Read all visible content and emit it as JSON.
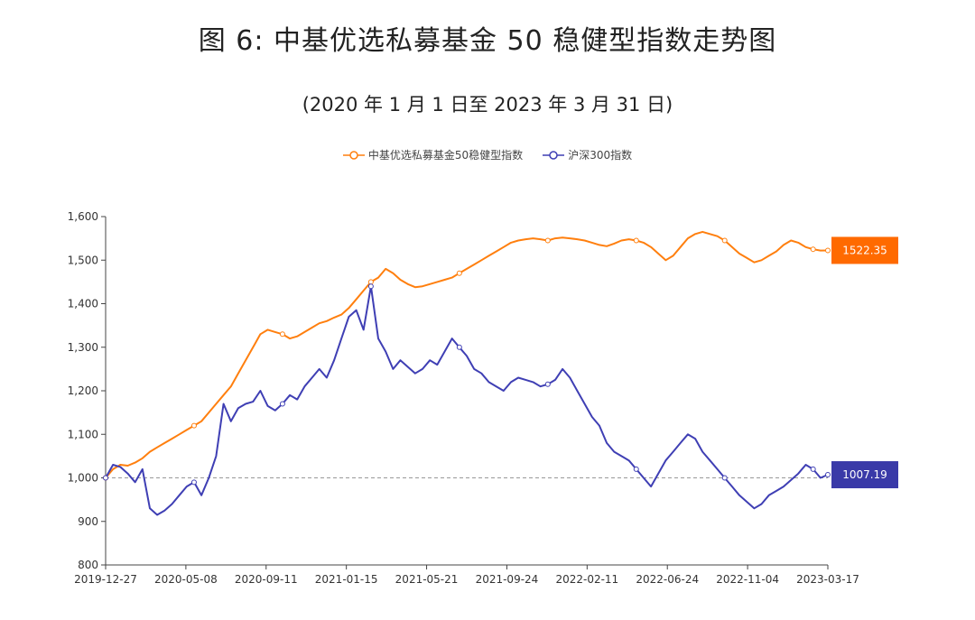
{
  "title": "图 6:  中基优选私募基金 50 稳健型指数走势图",
  "subtitle": "(2020 年 1 月 1 日至 2023 年 3 月 31 日)",
  "colors": {
    "series1": "#ff7f0e",
    "series2": "#3f3fb4",
    "end1_bg": "#ff6a00",
    "end2_bg": "#3a3aa8",
    "baseline": "#999999"
  },
  "chart_data": {
    "type": "line",
    "ylim": [
      800,
      1600
    ],
    "yticks": [
      800,
      900,
      1000,
      1100,
      1200,
      1300,
      1400,
      1500,
      1600
    ],
    "ytick_labels": [
      "800",
      "900",
      "1,000",
      "1,100",
      "1,200",
      "1,300",
      "1,400",
      "1,500",
      "1,600"
    ],
    "xtick_labels": [
      "2019-12-27",
      "2020-05-08",
      "2020-09-11",
      "2021-01-15",
      "2021-05-21",
      "2021-09-24",
      "2022-02-11",
      "2022-06-24",
      "2022-11-04",
      "2023-03-17"
    ],
    "baseline": 1000,
    "series": [
      {
        "name": "中基优选私募基金50稳健型指数",
        "end_label": "1522.35",
        "values": [
          1000,
          1020,
          1030,
          1028,
          1035,
          1045,
          1060,
          1070,
          1080,
          1090,
          1100,
          1110,
          1120,
          1130,
          1150,
          1170,
          1190,
          1210,
          1240,
          1270,
          1300,
          1330,
          1340,
          1335,
          1330,
          1320,
          1325,
          1335,
          1345,
          1355,
          1360,
          1368,
          1375,
          1390,
          1410,
          1430,
          1450,
          1460,
          1480,
          1470,
          1455,
          1445,
          1438,
          1440,
          1445,
          1450,
          1455,
          1460,
          1470,
          1480,
          1490,
          1500,
          1510,
          1520,
          1530,
          1540,
          1545,
          1548,
          1550,
          1548,
          1545,
          1550,
          1552,
          1550,
          1548,
          1545,
          1540,
          1535,
          1532,
          1538,
          1545,
          1548,
          1545,
          1540,
          1530,
          1515,
          1500,
          1510,
          1530,
          1550,
          1560,
          1565,
          1560,
          1555,
          1545,
          1530,
          1515,
          1505,
          1495,
          1500,
          1510,
          1520,
          1535,
          1545,
          1540,
          1530,
          1525,
          1522,
          1522.35
        ]
      },
      {
        "name": "沪深300指数",
        "end_label": "1007.19",
        "values": [
          1000,
          1030,
          1025,
          1010,
          990,
          1020,
          930,
          915,
          925,
          940,
          960,
          980,
          990,
          960,
          1000,
          1050,
          1170,
          1130,
          1160,
          1170,
          1175,
          1200,
          1165,
          1155,
          1170,
          1190,
          1180,
          1210,
          1230,
          1250,
          1230,
          1270,
          1320,
          1370,
          1385,
          1340,
          1440,
          1320,
          1290,
          1250,
          1270,
          1255,
          1240,
          1250,
          1270,
          1260,
          1290,
          1320,
          1300,
          1280,
          1250,
          1240,
          1220,
          1210,
          1200,
          1220,
          1230,
          1225,
          1220,
          1210,
          1215,
          1225,
          1250,
          1230,
          1200,
          1170,
          1140,
          1120,
          1080,
          1060,
          1050,
          1040,
          1020,
          1000,
          980,
          1010,
          1040,
          1060,
          1080,
          1100,
          1090,
          1060,
          1040,
          1020,
          1000,
          980,
          960,
          945,
          930,
          940,
          960,
          970,
          980,
          995,
          1010,
          1030,
          1020,
          1000,
          1007.19
        ]
      }
    ]
  }
}
